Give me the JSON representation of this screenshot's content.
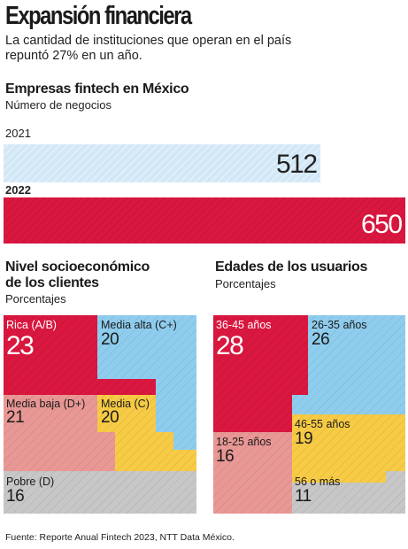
{
  "title": "Expansión financiera",
  "subtitle": "La cantidad de instituciones que operan en el país repuntó 27% en un año.",
  "fintech": {
    "heading": "Empresas fintech en México",
    "subheading": "Número de negocios"
  },
  "ses": {
    "heading_line1": "Nivel socioeconómico",
    "heading_line2": "de los clientes",
    "subheading": "Porcentajes"
  },
  "ages": {
    "heading": "Edades de los usuarios",
    "subheading": "Porcentajes"
  },
  "source": "Fuente: Reporte Anual Fintech 2023, NTT Data México.",
  "colors": {
    "red": "#d9173f",
    "light_blue": "#d3e8f7",
    "blue": "#8fcdee",
    "pink": "#e99895",
    "yellow": "#f7cb45",
    "gray": "#c7c7c7"
  },
  "chart_data": [
    {
      "type": "bar",
      "orientation": "horizontal",
      "title": "Empresas fintech en México",
      "subtitle": "Número de negocios",
      "categories": [
        "2021",
        "2022"
      ],
      "values": [
        512,
        650
      ],
      "value_labels": [
        "512",
        "650"
      ]
    },
    {
      "type": "treemap",
      "title": "Nivel socioeconómico de los clientes",
      "subtitle": "Porcentajes",
      "categories": [
        "Rica (A/B)",
        "Media alta (C+)",
        "Media baja (D+)",
        "Media (C)",
        "Pobre (D)"
      ],
      "values": [
        23,
        20,
        21,
        20,
        16
      ],
      "value_labels": [
        "23",
        "20",
        "21",
        "20",
        "16"
      ]
    },
    {
      "type": "treemap",
      "title": "Edades de los usuarios",
      "subtitle": "Porcentajes",
      "categories": [
        "36-45 años",
        "26-35 años",
        "46-55 años",
        "18-25 años",
        "56 o más"
      ],
      "values": [
        28,
        26,
        19,
        16,
        11
      ],
      "value_labels": [
        "28",
        "26",
        "19",
        "16",
        "11"
      ]
    }
  ]
}
